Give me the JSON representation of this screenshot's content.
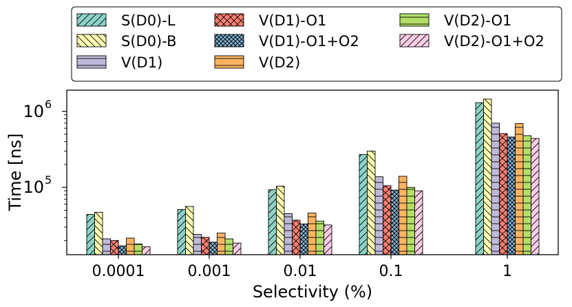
{
  "chart_data": {
    "type": "bar",
    "title": "",
    "xlabel": "Selectivity (%)",
    "ylabel": "Time [ns]",
    "yscale": "log",
    "ylim": [
      13000,
      1900000
    ],
    "yticks": [
      {
        "value": 100000,
        "base": "10",
        "exp": "5"
      },
      {
        "value": 1000000,
        "base": "10",
        "exp": "6"
      }
    ],
    "categories": [
      "0.0001",
      "0.001",
      "0.01",
      "0.1",
      "1"
    ],
    "legend_position": "top",
    "legend_columns": 3,
    "series": [
      {
        "name": "S(D0)-L",
        "color": "#8dd3c7",
        "hatch": "fslash",
        "values": [
          44000,
          51000,
          93000,
          270000,
          1300000
        ]
      },
      {
        "name": "S(D0)-B",
        "color": "#ffffb3",
        "hatch": "bslash",
        "values": [
          47000,
          56000,
          104000,
          300000,
          1450000
        ]
      },
      {
        "name": "V(D1)",
        "color": "#bebada",
        "hatch": "hline",
        "values": [
          21000,
          24000,
          45000,
          138000,
          700000
        ]
      },
      {
        "name": "V(D1)-O1",
        "color": "#fb8072",
        "hatch": "cross",
        "values": [
          20000,
          22000,
          37000,
          105000,
          510000
        ]
      },
      {
        "name": "V(D1)-O1+O2",
        "color": "#80b1d3",
        "hatch": "xcross",
        "values": [
          17000,
          19000,
          33000,
          92000,
          460000
        ]
      },
      {
        "name": "V(D2)",
        "color": "#fdb462",
        "hatch": "hline",
        "values": [
          21500,
          25000,
          46000,
          140000,
          690000
        ]
      },
      {
        "name": "V(D2)-O1",
        "color": "#b3de69",
        "hatch": "hline2",
        "values": [
          18000,
          21000,
          36000,
          100000,
          480000
        ]
      },
      {
        "name": "V(D2)-O1+O2",
        "color": "#fccde5",
        "hatch": "fslash2",
        "values": [
          16500,
          18500,
          32000,
          90000,
          440000
        ]
      }
    ]
  }
}
